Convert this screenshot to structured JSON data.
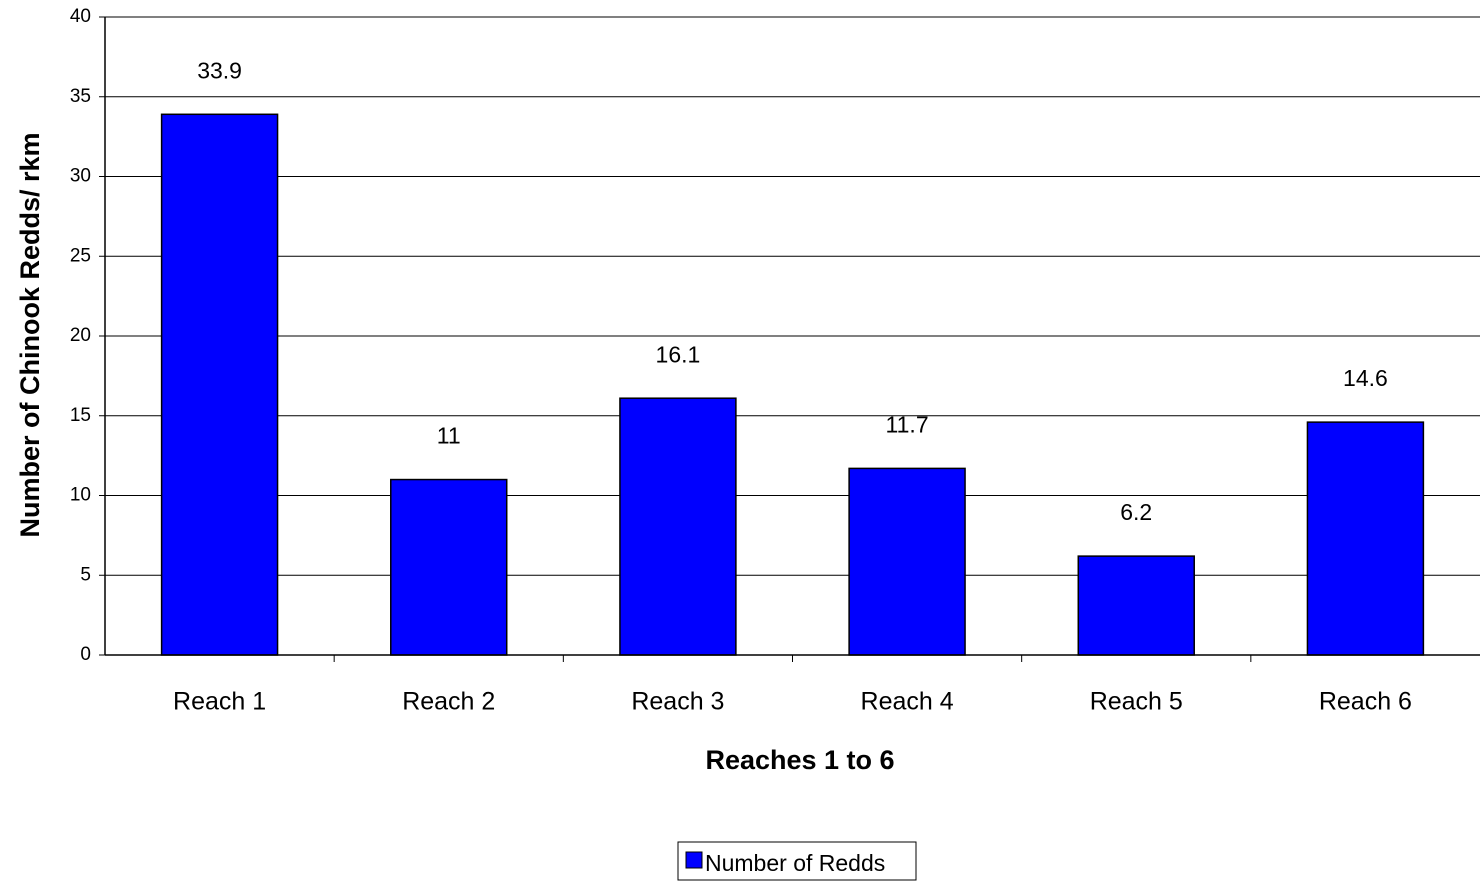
{
  "chart_data": {
    "type": "bar",
    "categories": [
      "Reach 1",
      "Reach 2",
      "Reach 3",
      "Reach 4",
      "Reach 5",
      "Reach 6"
    ],
    "series": [
      {
        "name": "Number of Redds",
        "color": "#0000ff",
        "values": [
          33.9,
          11,
          16.1,
          11.7,
          6.2,
          14.6
        ]
      }
    ],
    "x_label": "Reaches 1 to 6",
    "y_label": "Number of Chinook Redds/ rkm",
    "ylim": [
      0,
      40
    ],
    "yticks": [
      0,
      5,
      10,
      15,
      20,
      25,
      30,
      35,
      40
    ],
    "grid": true,
    "legend": "bottom"
  }
}
